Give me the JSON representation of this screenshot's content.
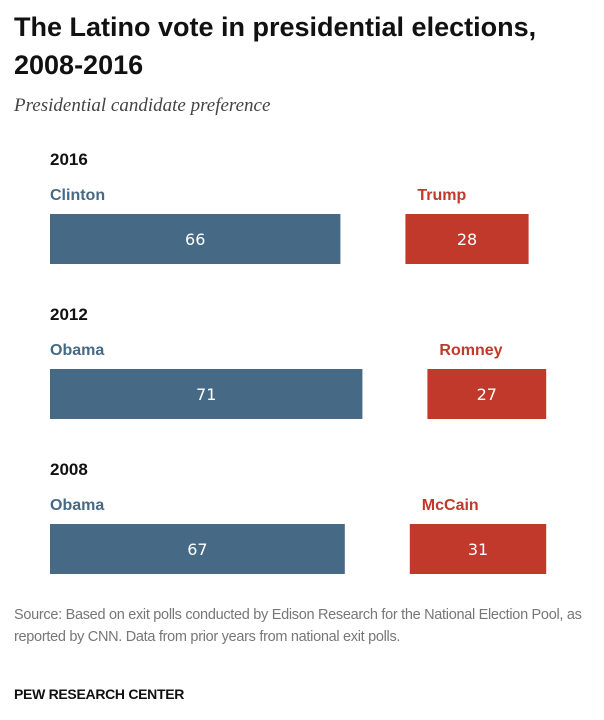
{
  "chart_data": {
    "type": "bar",
    "title": "The Latino vote in presidential elections, 2008-2016",
    "subtitle": "Presidential candidate preference",
    "groups": [
      {
        "year": "2016",
        "dem": {
          "name": "Clinton",
          "value": 66
        },
        "rep": {
          "name": "Trump",
          "value": 28
        }
      },
      {
        "year": "2012",
        "dem": {
          "name": "Obama",
          "value": 71
        },
        "rep": {
          "name": "Romney",
          "value": 27
        }
      },
      {
        "year": "2008",
        "dem": {
          "name": "Obama",
          "value": 67
        },
        "rep": {
          "name": "McCain",
          "value": 31
        }
      }
    ],
    "colors": {
      "dem": "#466a85",
      "rep": "#c0392b"
    }
  },
  "source": "Source: Based on exit polls conducted by Edison Research for the National Election Pool, as reported by CNN. Data from prior years from national exit polls.",
  "brand": "PEW RESEARCH CENTER"
}
